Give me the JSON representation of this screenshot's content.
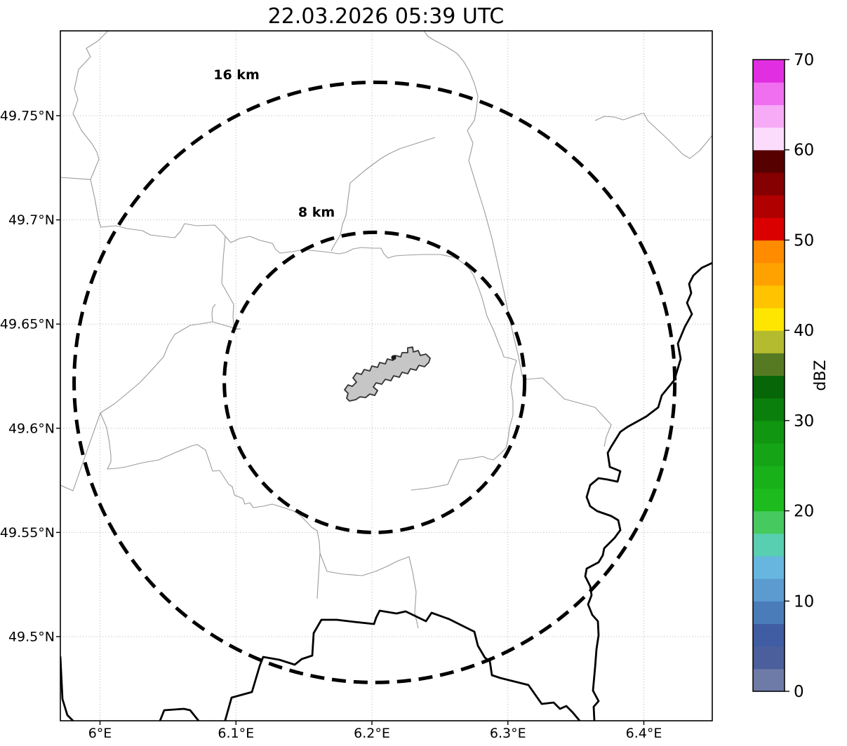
{
  "title": "22.03.2026 05:39 UTC",
  "chart_data": {
    "type": "heatmap",
    "subtype": "weather-radar-ppi-map",
    "title": "22.03.2026 05:39 UTC",
    "xlabel": "",
    "ylabel": "",
    "grid": true,
    "xlim": [
      5.97,
      6.45
    ],
    "ylim": [
      49.46,
      49.79
    ],
    "x_ticks": [
      {
        "value": 6.0,
        "label": "6°E"
      },
      {
        "value": 6.1,
        "label": "6.1°E"
      },
      {
        "value": 6.2,
        "label": "6.2°E"
      },
      {
        "value": 6.3,
        "label": "6.3°E"
      },
      {
        "value": 6.4,
        "label": "6.4°E"
      }
    ],
    "y_ticks": [
      {
        "value": 49.75,
        "label": "49.75°N"
      },
      {
        "value": 49.7,
        "label": "49.7°N"
      },
      {
        "value": 49.65,
        "label": "49.65°N"
      },
      {
        "value": 49.6,
        "label": "49.6°N"
      },
      {
        "value": 49.55,
        "label": "49.55°N"
      },
      {
        "value": 49.5,
        "label": "49.5°N"
      }
    ],
    "values": [],
    "center": {
      "lon": 6.202,
      "lat": 49.622
    },
    "range_rings": [
      {
        "radius_km": 8,
        "label": "8 km"
      },
      {
        "radius_km": 16,
        "label": "16 km"
      }
    ],
    "colorbar": {
      "label": "dBZ",
      "min": 0,
      "max": 70,
      "step": 2.5,
      "ticks": [
        {
          "value": 0,
          "label": "0"
        },
        {
          "value": 10,
          "label": "10"
        },
        {
          "value": 20,
          "label": "20"
        },
        {
          "value": 30,
          "label": "30"
        },
        {
          "value": 40,
          "label": "40"
        },
        {
          "value": 50,
          "label": "50"
        },
        {
          "value": 60,
          "label": "60"
        },
        {
          "value": 70,
          "label": "70"
        }
      ],
      "colors_bottom_to_top": [
        "#6e7ba7",
        "#4a5f9b",
        "#405da4",
        "#4a7cba",
        "#5b9bd0",
        "#67b6e0",
        "#57cfb0",
        "#46c95e",
        "#1dbb1d",
        "#19b119",
        "#15a415",
        "#109610",
        "#0b7f0b",
        "#076607",
        "#567a22",
        "#b5bb2e",
        "#ffe600",
        "#ffc300",
        "#ffa200",
        "#ff8b00",
        "#da0000",
        "#b00000",
        "#850000",
        "#570000",
        "#fcdcfc",
        "#f7abf7",
        "#f06ef0",
        "#e12ee1"
      ]
    }
  },
  "styles": {
    "grid_color": "#c8c8c8",
    "boundary_color": "#9b9b9b",
    "border_color": "#000000",
    "ring_color": "#000000",
    "airport_fill": "#c6c6c6",
    "airport_stroke": "#333333",
    "marker_color": "#1a1a1a",
    "spine_color": "#000000"
  }
}
